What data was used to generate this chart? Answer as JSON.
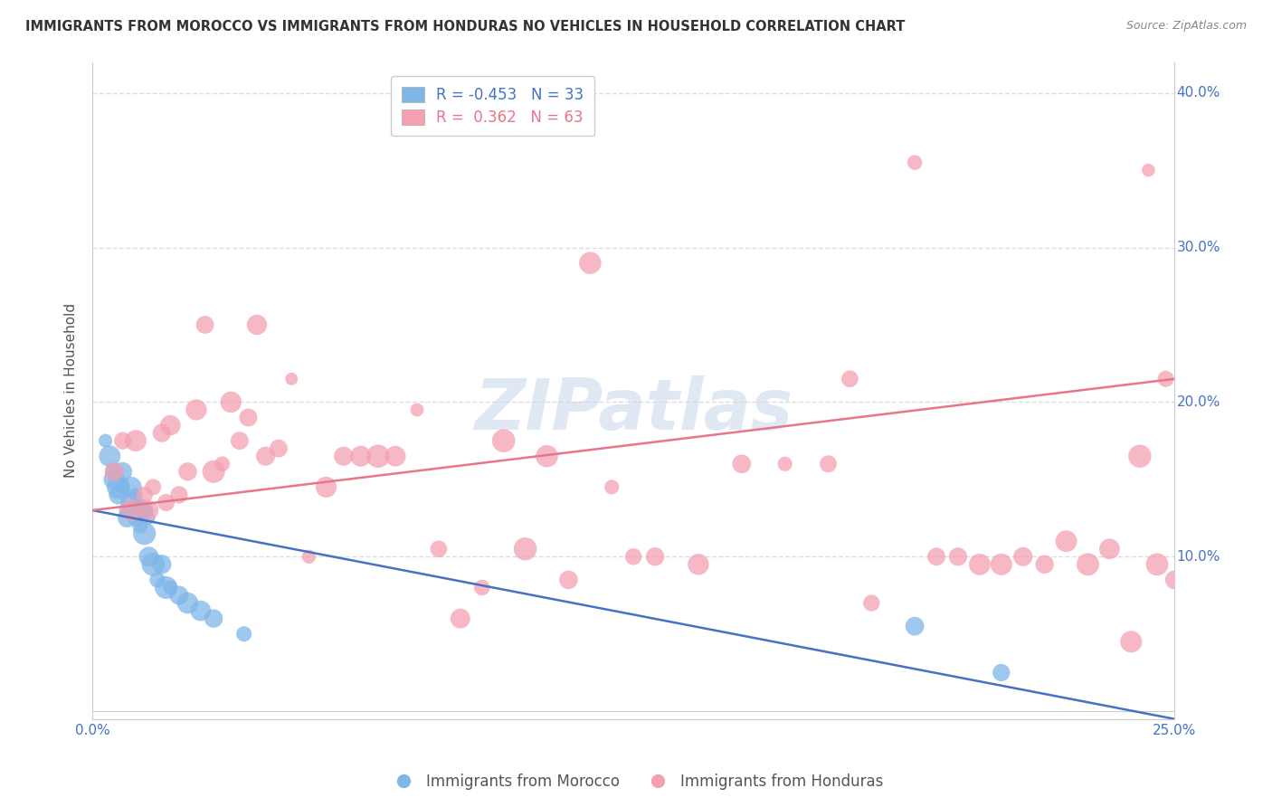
{
  "title": "IMMIGRANTS FROM MOROCCO VS IMMIGRANTS FROM HONDURAS NO VEHICLES IN HOUSEHOLD CORRELATION CHART",
  "source": "Source: ZipAtlas.com",
  "ylabel": "No Vehicles in Household",
  "xlim": [
    0.0,
    0.25
  ],
  "ylim": [
    -0.005,
    0.42
  ],
  "xticks": [
    0.0,
    0.05,
    0.1,
    0.15,
    0.2,
    0.25
  ],
  "yticks": [
    0.0,
    0.1,
    0.2,
    0.3,
    0.4
  ],
  "xticklabels": [
    "0.0%",
    "",
    "",
    "",
    "",
    "25.0%"
  ],
  "yticklabels_right": [
    "",
    "10.0%",
    "20.0%",
    "30.0%",
    "40.0%"
  ],
  "morocco_R": -0.453,
  "morocco_N": 33,
  "honduras_R": 0.362,
  "honduras_N": 63,
  "morocco_color": "#7EB6E8",
  "honduras_color": "#F4A0B0",
  "morocco_line_color": "#4472C4",
  "honduras_line_color": "#E8758A",
  "legend_label_morocco": "Immigrants from Morocco",
  "legend_label_honduras": "Immigrants from Honduras",
  "watermark": "ZIPatlas",
  "background_color": "#FFFFFF",
  "grid_color": "#DDDDDD",
  "axis_color": "#4472C4",
  "morocco_x": [
    0.003,
    0.004,
    0.005,
    0.005,
    0.006,
    0.006,
    0.007,
    0.007,
    0.008,
    0.008,
    0.009,
    0.009,
    0.009,
    0.01,
    0.01,
    0.011,
    0.011,
    0.012,
    0.012,
    0.013,
    0.013,
    0.014,
    0.015,
    0.016,
    0.017,
    0.018,
    0.02,
    0.022,
    0.025,
    0.028,
    0.035,
    0.19,
    0.21
  ],
  "morocco_y": [
    0.175,
    0.165,
    0.155,
    0.15,
    0.145,
    0.14,
    0.155,
    0.145,
    0.13,
    0.125,
    0.145,
    0.135,
    0.13,
    0.14,
    0.125,
    0.13,
    0.12,
    0.13,
    0.115,
    0.125,
    0.1,
    0.095,
    0.085,
    0.095,
    0.08,
    0.08,
    0.075,
    0.07,
    0.065,
    0.06,
    0.05,
    0.055,
    0.025
  ],
  "honduras_x": [
    0.005,
    0.007,
    0.009,
    0.01,
    0.012,
    0.013,
    0.014,
    0.016,
    0.017,
    0.018,
    0.02,
    0.022,
    0.024,
    0.026,
    0.028,
    0.03,
    0.032,
    0.034,
    0.036,
    0.038,
    0.04,
    0.043,
    0.046,
    0.05,
    0.054,
    0.058,
    0.062,
    0.066,
    0.07,
    0.075,
    0.08,
    0.085,
    0.09,
    0.095,
    0.1,
    0.105,
    0.11,
    0.115,
    0.12,
    0.125,
    0.13,
    0.14,
    0.15,
    0.16,
    0.17,
    0.175,
    0.18,
    0.19,
    0.195,
    0.2,
    0.205,
    0.21,
    0.215,
    0.22,
    0.225,
    0.23,
    0.235,
    0.24,
    0.242,
    0.244,
    0.246,
    0.248,
    0.25
  ],
  "honduras_y": [
    0.155,
    0.175,
    0.13,
    0.175,
    0.14,
    0.13,
    0.145,
    0.18,
    0.135,
    0.185,
    0.14,
    0.155,
    0.195,
    0.25,
    0.155,
    0.16,
    0.2,
    0.175,
    0.19,
    0.25,
    0.165,
    0.17,
    0.215,
    0.1,
    0.145,
    0.165,
    0.165,
    0.165,
    0.165,
    0.195,
    0.105,
    0.06,
    0.08,
    0.175,
    0.105,
    0.165,
    0.085,
    0.29,
    0.145,
    0.1,
    0.1,
    0.095,
    0.16,
    0.16,
    0.16,
    0.215,
    0.07,
    0.355,
    0.1,
    0.1,
    0.095,
    0.095,
    0.1,
    0.095,
    0.11,
    0.095,
    0.105,
    0.045,
    0.165,
    0.35,
    0.095,
    0.215,
    0.085
  ],
  "mor_line_x0": 0.0,
  "mor_line_y0": 0.13,
  "mor_line_x1": 0.25,
  "mor_line_y1": -0.005,
  "hon_line_x0": 0.0,
  "hon_line_y0": 0.13,
  "hon_line_x1": 0.25,
  "hon_line_y1": 0.215
}
